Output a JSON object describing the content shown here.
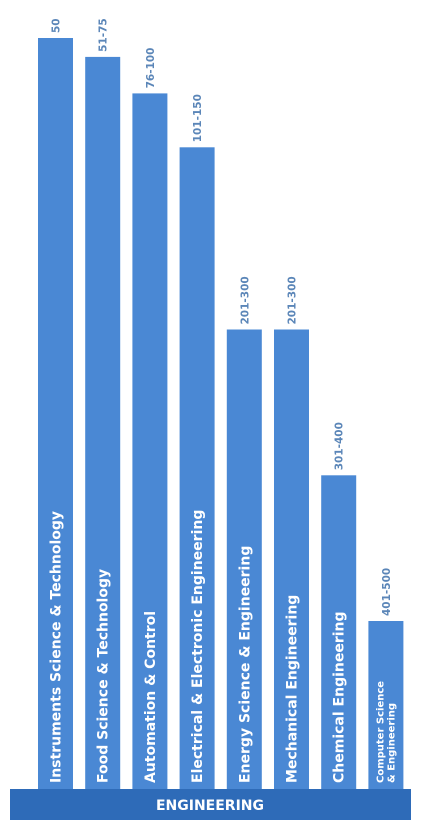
{
  "chart_data": {
    "type": "bar",
    "orientation": "vertical",
    "categories": [
      "Instruments Science & Technology",
      "Food Science & Technology",
      "Automation & Control",
      "Electrical & Electronic Engineering",
      "Energy Science & Engineering",
      "Mechanical Engineering",
      "Chemical Engineering",
      "Computer Science & Engineering"
    ],
    "category_lines": [
      [
        "Instruments Science & Technology"
      ],
      [
        "Food Science & Technology"
      ],
      [
        "Automation & Control"
      ],
      [
        "Electrical & Electronic Engineering"
      ],
      [
        "Energy Science & Engineering"
      ],
      [
        "Mechanical Engineering"
      ],
      [
        "Chemical Engineering"
      ],
      [
        "Computer Science",
        "& Engineering"
      ]
    ],
    "range_labels": [
      "50",
      "51-75",
      "76-100",
      "101-150",
      "201-300",
      "201-300",
      "301-400",
      "401-500"
    ],
    "values": [
      50,
      63,
      88,
      125,
      250,
      250,
      350,
      450
    ],
    "value_meaning": "rank (lower rank = taller bar)",
    "y_reversed": true,
    "ylim": [
      550,
      0
    ],
    "grid": false,
    "legend": "none",
    "colors": {
      "bar": "#4a88d4",
      "band": "#2e6bb8",
      "range_label": "#5b86b8"
    }
  },
  "footer": {
    "label": "ENGINEERING"
  }
}
